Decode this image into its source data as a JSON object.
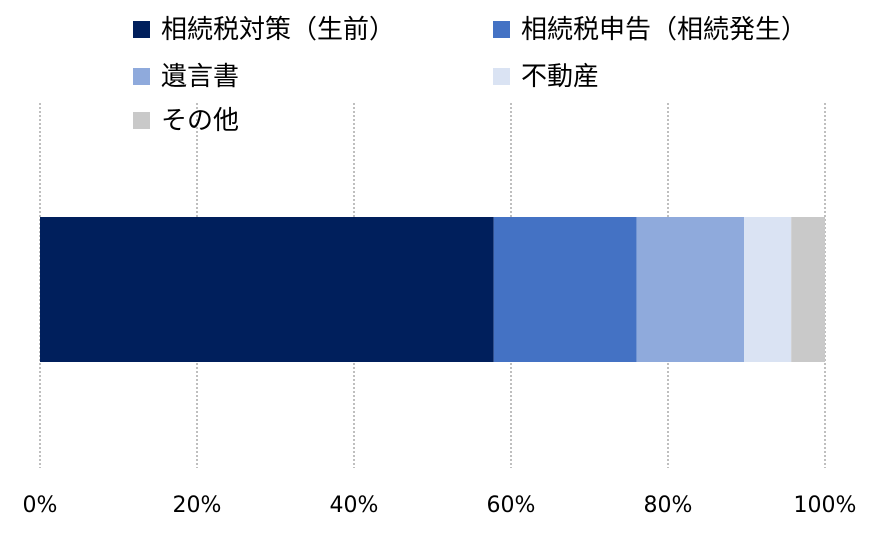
{
  "chart_data": {
    "type": "bar",
    "orientation": "horizontal",
    "stacked": true,
    "percent_scale": true,
    "categories": [
      ""
    ],
    "series": [
      {
        "name": "相続税対策（生前）",
        "values": [
          57.8
        ],
        "color": "#001F5C"
      },
      {
        "name": "相続税申告（相続発生）",
        "values": [
          18.2
        ],
        "color": "#4472C4"
      },
      {
        "name": "遺言書",
        "values": [
          13.7
        ],
        "color": "#8FAADC"
      },
      {
        "name": "不動産",
        "values": [
          6.0
        ],
        "color": "#DAE3F3"
      },
      {
        "name": "その他",
        "values": [
          4.3
        ],
        "color": "#C9C9C9"
      }
    ],
    "x_ticks": [
      "0%",
      "20%",
      "40%",
      "60%",
      "80%",
      "100%"
    ],
    "xlim": [
      0,
      100
    ],
    "grid": true,
    "gridline_style": "dotted",
    "gridline_color": "#BFBFBF",
    "legend_position": "top"
  }
}
